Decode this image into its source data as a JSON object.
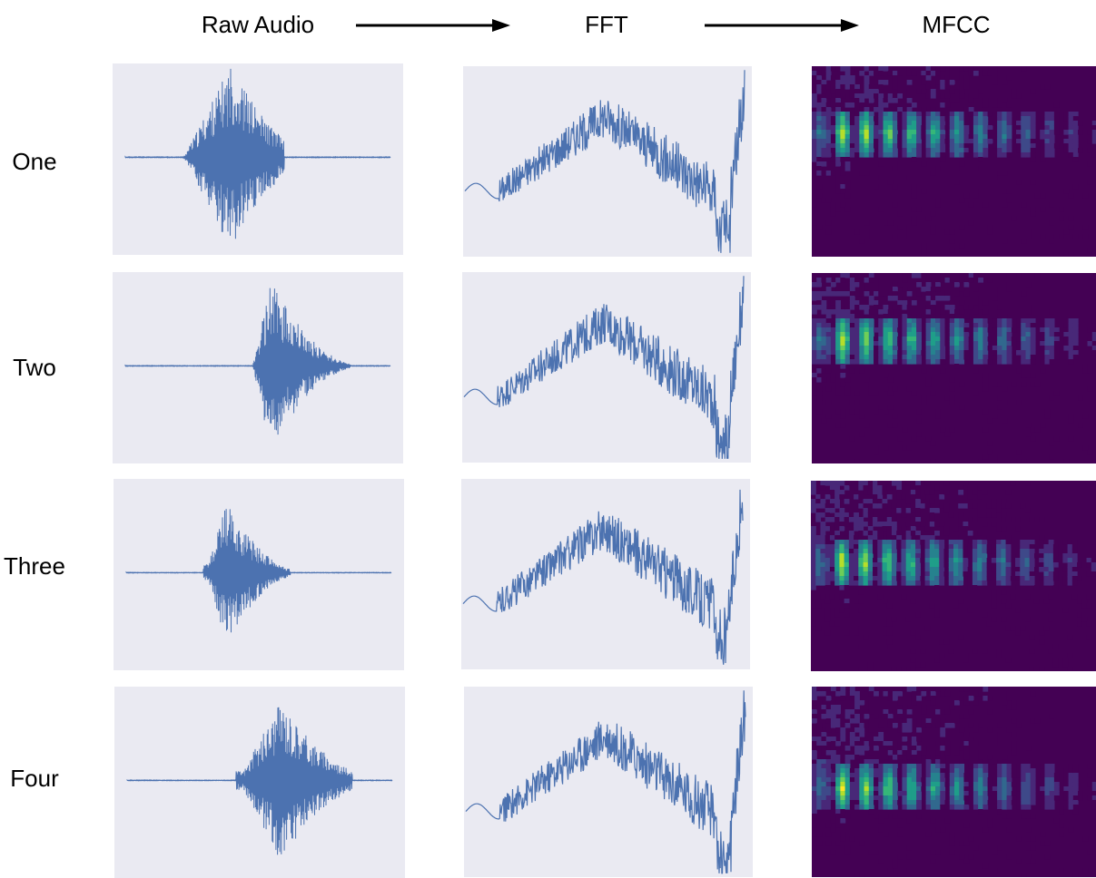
{
  "header": {
    "columns": [
      "Raw Audio",
      "FFT",
      "MFCC"
    ]
  },
  "rows": [
    "One",
    "Two",
    "Three",
    "Four"
  ],
  "colors": {
    "line": "#4c72b0",
    "panel_bg": "#eaeaf2",
    "mfcc_low": "#440154",
    "mfcc_mid": "#21918c",
    "mfcc_high": "#fde725"
  }
}
